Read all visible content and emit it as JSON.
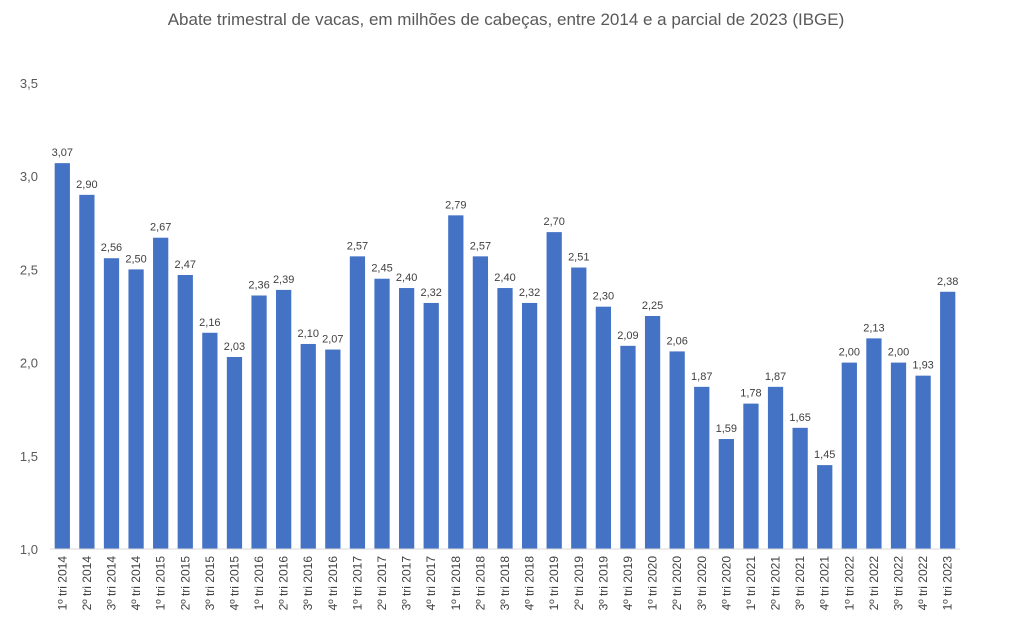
{
  "chart_data": {
    "type": "bar",
    "title": "Abate trimestral de vacas, em milhões de cabeças, entre 2014 e a parcial de 2023 (IBGE)",
    "xlabel": "",
    "ylabel": "",
    "ylim": [
      1.0,
      3.5
    ],
    "yticks": [
      "1,0",
      "1,5",
      "2,0",
      "2,5",
      "3,0",
      "3,5"
    ],
    "grid": false,
    "legend": "none",
    "bar_color": "#4472C4",
    "categories": [
      "1º tri 2014",
      "2º tri 2014",
      "3º tri 2014",
      "4º tri 2014",
      "1º tri 2015",
      "2º tri 2015",
      "3º tri 2015",
      "4º tri 2015",
      "1º tri 2016",
      "2º tri 2016",
      "3º tri 2016",
      "4º tri 2016",
      "1º tri 2017",
      "2º tri 2017",
      "3º tri 2017",
      "4º tri 2017",
      "1º tri 2018",
      "2º tri 2018",
      "3º tri 2018",
      "4º tri 2018",
      "1º tri 2019",
      "2º tri 2019",
      "3º tri 2019",
      "4º tri 2019",
      "1º tri 2020",
      "2º tri 2020",
      "3º tri 2020",
      "4º tri 2020",
      "1º tri 2021",
      "2º tri 2021",
      "3º tri 2021",
      "4º tri 2021",
      "1º tri 2022",
      "2º tri 2022",
      "3º tri 2022",
      "4º tri 2022",
      "1º tri 2023"
    ],
    "values": [
      3.07,
      2.9,
      2.56,
      2.5,
      2.67,
      2.47,
      2.16,
      2.03,
      2.36,
      2.39,
      2.1,
      2.07,
      2.57,
      2.45,
      2.4,
      2.32,
      2.79,
      2.57,
      2.4,
      2.32,
      2.7,
      2.51,
      2.3,
      2.09,
      2.25,
      2.06,
      1.87,
      1.59,
      1.78,
      1.87,
      1.65,
      1.45,
      2.0,
      2.13,
      2.0,
      1.93,
      2.38
    ],
    "data_labels": [
      "3,07",
      "2,90",
      "2,56",
      "2,50",
      "2,67",
      "2,47",
      "2,16",
      "2,03",
      "2,36",
      "2,39",
      "2,10",
      "2,07",
      "2,57",
      "2,45",
      "2,40",
      "2,32",
      "2,79",
      "2,57",
      "2,40",
      "2,32",
      "2,70",
      "2,51",
      "2,30",
      "2,09",
      "2,25",
      "2,06",
      "1,87",
      "1,59",
      "1,78",
      "1,87",
      "1,65",
      "1,45",
      "2,00",
      "2,13",
      "2,00",
      "1,93",
      "2,38"
    ]
  }
}
